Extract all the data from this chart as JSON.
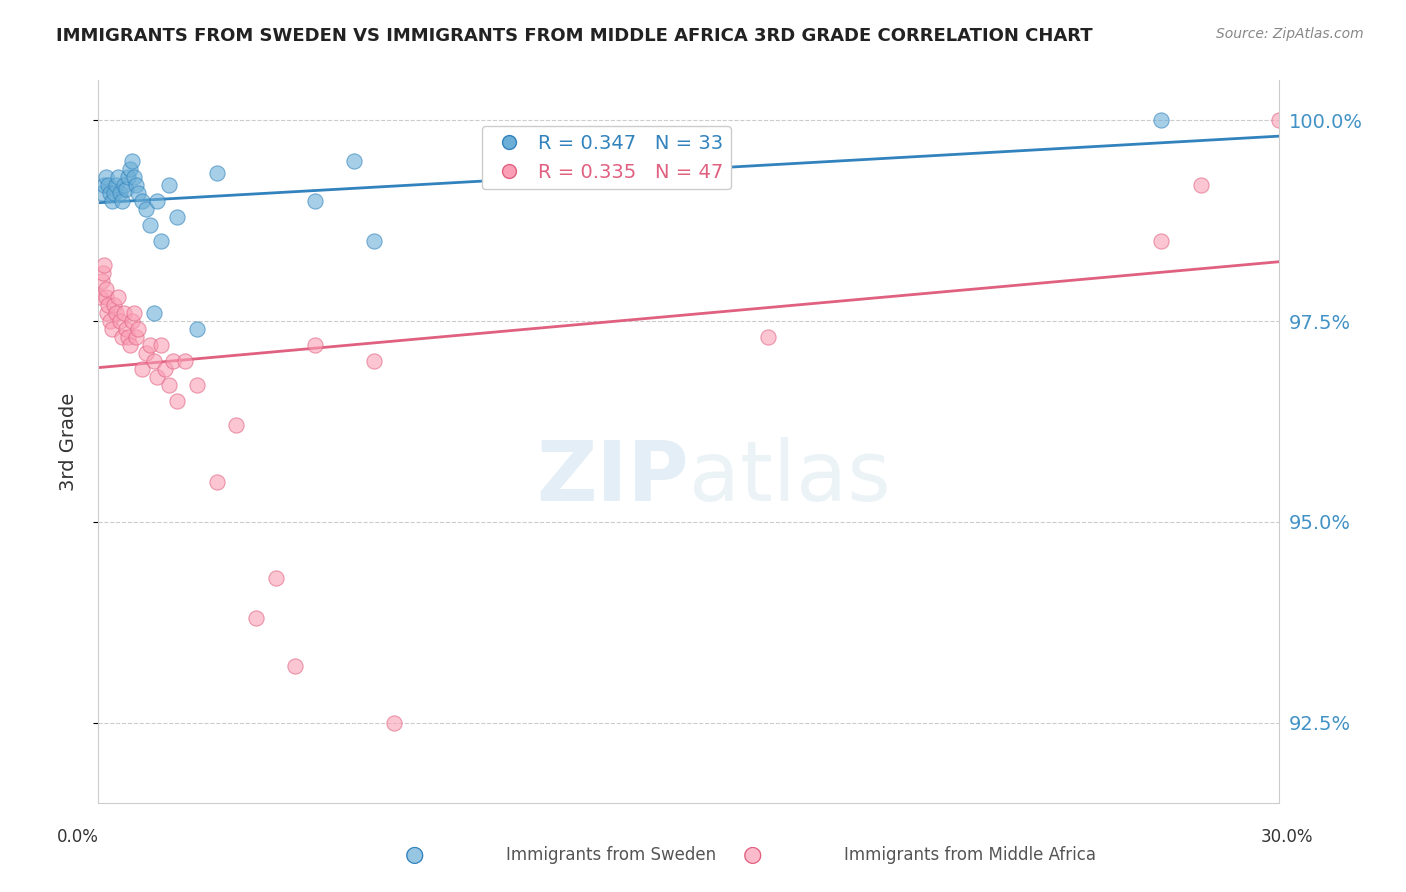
{
  "title": "IMMIGRANTS FROM SWEDEN VS IMMIGRANTS FROM MIDDLE AFRICA 3RD GRADE CORRELATION CHART",
  "source": "Source: ZipAtlas.com",
  "ylabel": "3rd Grade",
  "xlim": [
    0.0,
    30.0
  ],
  "ylim": [
    91.5,
    100.5
  ],
  "yticks": [
    92.5,
    95.0,
    97.5,
    100.0
  ],
  "R_sweden": 0.347,
  "N_sweden": 33,
  "R_middle_africa": 0.335,
  "N_middle_africa": 47,
  "color_sweden": "#6baed6",
  "color_middle_africa": "#fa9fb5",
  "color_trendline_sweden": "#3182bd",
  "color_trendline_middle_africa": "#e06080",
  "color_right_axis": "#4292c6",
  "sweden_x": [
    0.1,
    0.15,
    0.2,
    0.25,
    0.3,
    0.35,
    0.4,
    0.45,
    0.5,
    0.55,
    0.6,
    0.65,
    0.7,
    0.75,
    0.8,
    0.85,
    0.9,
    0.95,
    1.0,
    1.1,
    1.2,
    1.3,
    1.4,
    1.5,
    1.6,
    1.8,
    2.0,
    2.5,
    3.0,
    5.5,
    6.5,
    7.0,
    27.0
  ],
  "sweden_y": [
    99.1,
    99.2,
    99.3,
    99.2,
    99.1,
    99.0,
    99.1,
    99.2,
    99.3,
    99.1,
    99.0,
    99.2,
    99.15,
    99.3,
    99.4,
    99.5,
    99.3,
    99.2,
    99.1,
    99.0,
    98.9,
    98.7,
    97.6,
    99.0,
    98.5,
    99.2,
    98.8,
    97.4,
    99.35,
    99.0,
    99.5,
    98.5,
    100.0
  ],
  "africa_x": [
    0.05,
    0.1,
    0.12,
    0.15,
    0.18,
    0.2,
    0.22,
    0.25,
    0.3,
    0.35,
    0.4,
    0.45,
    0.5,
    0.55,
    0.6,
    0.65,
    0.7,
    0.75,
    0.8,
    0.85,
    0.9,
    0.95,
    1.0,
    1.1,
    1.2,
    1.3,
    1.4,
    1.5,
    1.6,
    1.7,
    1.8,
    1.9,
    2.0,
    2.2,
    2.5,
    3.0,
    3.5,
    4.0,
    4.5,
    5.0,
    5.5,
    7.0,
    7.5,
    17.0,
    27.0,
    28.0,
    30.0
  ],
  "africa_y": [
    97.8,
    98.0,
    98.1,
    98.2,
    97.8,
    97.9,
    97.6,
    97.7,
    97.5,
    97.4,
    97.7,
    97.6,
    97.8,
    97.5,
    97.3,
    97.6,
    97.4,
    97.3,
    97.2,
    97.5,
    97.6,
    97.3,
    97.4,
    96.9,
    97.1,
    97.2,
    97.0,
    96.8,
    97.2,
    96.9,
    96.7,
    97.0,
    96.5,
    97.0,
    96.7,
    95.5,
    96.2,
    93.8,
    94.3,
    93.2,
    97.2,
    97.0,
    92.5,
    97.3,
    98.5,
    99.2,
    100.0
  ]
}
